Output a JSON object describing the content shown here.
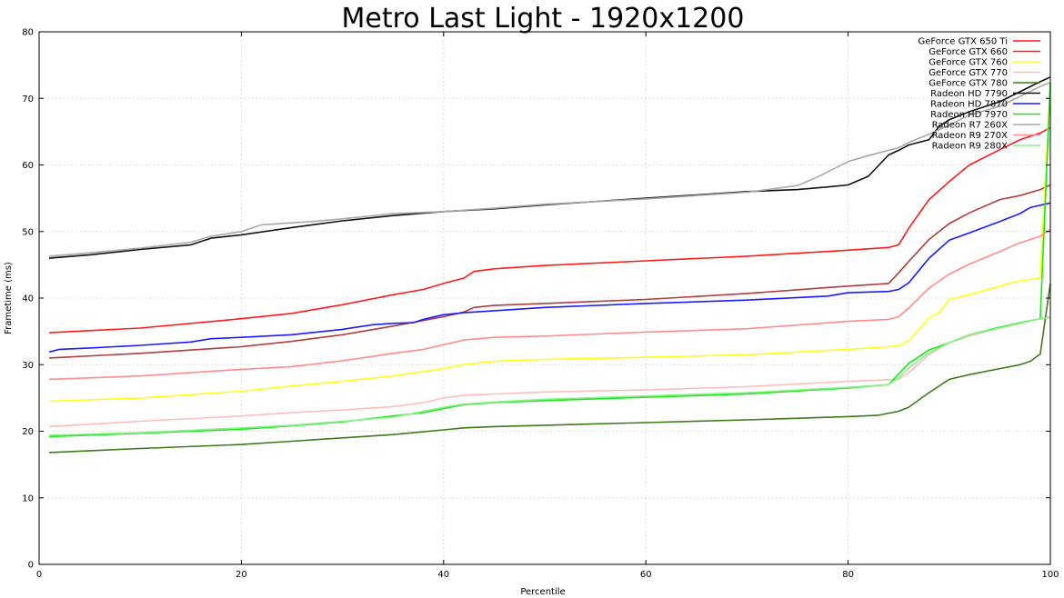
{
  "chart_data": {
    "type": "line",
    "title": "Metro Last Light - 1920x1200",
    "xlabel": "Percentile",
    "ylabel": "Frametime (ms)",
    "xlim": [
      0,
      100
    ],
    "ylim": [
      0,
      80
    ],
    "xticks": [
      0,
      20,
      40,
      60,
      80,
      100
    ],
    "yticks": [
      0,
      10,
      20,
      30,
      40,
      50,
      60,
      70,
      80
    ],
    "grid": true,
    "legend_position": "top-right",
    "series": [
      {
        "name": "GeForce GTX 650 Ti",
        "color": "#ff1a1a",
        "x": [
          1,
          10,
          20,
          25,
          30,
          35,
          38,
          40,
          42,
          43,
          45,
          50,
          60,
          70,
          80,
          84,
          85,
          86,
          88,
          90,
          92,
          95,
          97,
          99,
          100
        ],
        "y": [
          34.8,
          35.5,
          36.9,
          37.7,
          39.0,
          40.5,
          41.3,
          42.2,
          43.0,
          44.0,
          44.4,
          44.9,
          45.6,
          46.3,
          47.2,
          47.6,
          48.0,
          50.5,
          54.8,
          57.5,
          60.0,
          62.3,
          63.8,
          64.8,
          65.6
        ]
      },
      {
        "name": "GeForce GTX 660",
        "color": "#b03c3c",
        "x": [
          1,
          10,
          20,
          25,
          30,
          35,
          40,
          42,
          43,
          45,
          50,
          60,
          70,
          80,
          84,
          85,
          86,
          88,
          90,
          92,
          95,
          97,
          99,
          100
        ],
        "y": [
          31.0,
          31.7,
          32.7,
          33.5,
          34.5,
          35.8,
          37.2,
          37.9,
          38.6,
          38.9,
          39.2,
          39.8,
          40.7,
          41.8,
          42.2,
          43.8,
          45.5,
          48.8,
          51.2,
          52.8,
          54.8,
          55.4,
          56.3,
          57.0
        ]
      },
      {
        "name": "GeForce GTX 760",
        "color": "#ffff1a",
        "x": [
          1,
          10,
          20,
          25,
          30,
          35,
          40,
          42,
          45,
          50,
          60,
          70,
          80,
          85,
          86,
          88,
          89,
          90,
          92,
          95,
          97,
          99,
          100
        ],
        "y": [
          24.5,
          25.0,
          26.0,
          26.8,
          27.5,
          28.3,
          29.4,
          30.0,
          30.5,
          30.8,
          31.1,
          31.5,
          32.3,
          32.8,
          33.6,
          37.0,
          37.8,
          39.8,
          40.5,
          41.8,
          42.6,
          43.0,
          72.5
        ]
      },
      {
        "name": "GeForce GTX 770",
        "color": "#ffbcbc",
        "x": [
          1,
          10,
          20,
          25,
          30,
          35,
          38,
          40,
          42,
          45,
          50,
          60,
          70,
          80,
          85,
          86,
          88,
          90,
          92,
          95,
          97,
          99,
          100
        ],
        "y": [
          20.7,
          21.5,
          22.3,
          22.8,
          23.2,
          23.7,
          24.3,
          25.0,
          25.4,
          25.6,
          25.9,
          26.2,
          26.7,
          27.5,
          27.8,
          28.8,
          31.5,
          33.3,
          34.3,
          35.5,
          36.2,
          36.9,
          37.2
        ]
      },
      {
        "name": "GeForce GTX 780",
        "color": "#3c7a1a",
        "x": [
          1,
          10,
          20,
          25,
          30,
          35,
          40,
          42,
          45,
          50,
          60,
          70,
          80,
          83,
          85,
          86,
          88,
          90,
          92,
          95,
          97,
          98,
          99,
          100
        ],
        "y": [
          16.8,
          17.4,
          18.0,
          18.5,
          19.0,
          19.5,
          20.2,
          20.5,
          20.7,
          20.9,
          21.3,
          21.7,
          22.2,
          22.4,
          23.0,
          23.6,
          25.8,
          27.8,
          28.5,
          29.4,
          30.0,
          30.5,
          31.6,
          42.2
        ]
      },
      {
        "name": "Radeon HD 7790",
        "color": "#111111",
        "x": [
          1,
          5,
          10,
          15,
          17,
          20,
          25,
          27,
          30,
          35,
          40,
          45,
          50,
          60,
          65,
          70,
          75,
          78,
          80,
          82,
          84,
          85,
          86,
          88,
          89,
          90,
          92,
          95,
          97,
          99,
          100
        ],
        "y": [
          46.0,
          46.5,
          47.3,
          48.0,
          49.0,
          49.5,
          50.6,
          51.0,
          51.6,
          52.4,
          53.0,
          53.4,
          54.0,
          55.0,
          55.5,
          56.0,
          56.3,
          56.7,
          57.0,
          58.3,
          61.5,
          62.2,
          63.0,
          63.8,
          65.8,
          66.8,
          68.0,
          69.5,
          71.0,
          72.5,
          73.2
        ]
      },
      {
        "name": "Radeon HD 7870",
        "color": "#1a1aff",
        "x": [
          1,
          2,
          5,
          10,
          15,
          17,
          20,
          25,
          30,
          33,
          35,
          37,
          38,
          40,
          42,
          45,
          50,
          60,
          70,
          78,
          80,
          84,
          85,
          86,
          88,
          90,
          92,
          95,
          97,
          98,
          100
        ],
        "y": [
          31.9,
          32.3,
          32.5,
          32.9,
          33.4,
          33.9,
          34.1,
          34.5,
          35.3,
          36.0,
          36.2,
          36.3,
          36.8,
          37.5,
          37.8,
          38.1,
          38.6,
          39.2,
          39.7,
          40.3,
          40.8,
          41.0,
          41.3,
          42.3,
          46.0,
          48.7,
          49.8,
          51.5,
          52.7,
          53.6,
          54.3
        ]
      },
      {
        "name": "Radeon HD 7970",
        "color": "#1ae61a",
        "x": [
          1,
          10,
          20,
          25,
          30,
          35,
          38,
          40,
          42,
          45,
          50,
          60,
          70,
          80,
          84,
          86,
          88,
          90,
          92,
          95,
          97,
          99,
          100
        ],
        "y": [
          19.2,
          19.7,
          20.3,
          20.8,
          21.4,
          22.3,
          22.8,
          23.4,
          24.0,
          24.3,
          24.6,
          25.1,
          25.6,
          26.5,
          27.0,
          30.2,
          32.2,
          33.3,
          34.5,
          35.6,
          36.3,
          36.9,
          72.3
        ]
      },
      {
        "name": "Radeon R7 260X",
        "color": "#a8a8a8",
        "x": [
          1,
          5,
          10,
          15,
          17,
          20,
          22,
          25,
          27,
          30,
          35,
          40,
          45,
          50,
          60,
          70,
          75,
          77,
          80,
          82,
          84,
          85,
          86,
          88,
          90,
          92,
          95,
          97,
          99,
          100
        ],
        "y": [
          46.3,
          46.8,
          47.5,
          48.4,
          49.3,
          50.0,
          51.0,
          51.3,
          51.5,
          51.9,
          52.7,
          53.0,
          53.5,
          54.1,
          54.9,
          55.9,
          56.9,
          58.2,
          60.5,
          61.4,
          62.2,
          62.6,
          63.4,
          64.6,
          66.0,
          67.5,
          68.8,
          70.3,
          71.8,
          72.4
        ]
      },
      {
        "name": "Radeon R9 270X",
        "color": "#ff8c8c",
        "x": [
          1,
          10,
          20,
          25,
          30,
          35,
          38,
          40,
          42,
          45,
          50,
          60,
          70,
          80,
          84,
          85,
          86,
          88,
          90,
          92,
          95,
          97,
          99,
          100
        ],
        "y": [
          27.8,
          28.3,
          29.3,
          29.7,
          30.6,
          31.7,
          32.3,
          33.0,
          33.7,
          34.1,
          34.3,
          34.9,
          35.4,
          36.5,
          36.8,
          37.2,
          38.5,
          41.5,
          43.6,
          45.1,
          47.0,
          48.3,
          49.3,
          50.3
        ]
      },
      {
        "name": "Radeon R9 280X",
        "color": "#8cf08c",
        "x": [
          1,
          10,
          20,
          25,
          30,
          35,
          40,
          42,
          45,
          50,
          60,
          70,
          80,
          84,
          85,
          86,
          88,
          90,
          92,
          95,
          97,
          99,
          100
        ],
        "y": [
          19.4,
          19.8,
          20.5,
          20.9,
          21.5,
          22.1,
          23.6,
          24.1,
          24.4,
          24.8,
          25.3,
          25.8,
          26.6,
          27.0,
          28.0,
          29.5,
          31.8,
          33.3,
          34.5,
          35.5,
          36.2,
          36.9,
          37.1
        ]
      }
    ]
  }
}
